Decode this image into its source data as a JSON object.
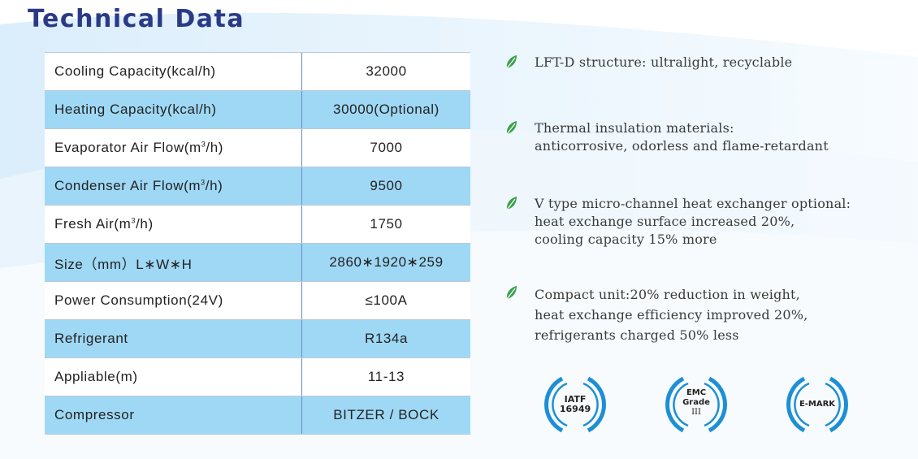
{
  "title": "Technical Data",
  "specs": [
    {
      "label": "Cooling  Capacity(kcal/h)",
      "value": "32000"
    },
    {
      "label": "Heating  Capacity(kcal/h)",
      "value": "30000(Optional)"
    },
    {
      "label_pre": "Evaporator  Air  Flow(m",
      "label_sup": "3",
      "label_post": "/h)",
      "value": "7000"
    },
    {
      "label_pre": "Condenser  Air  Flow(m",
      "label_sup": "3",
      "label_post": "/h)",
      "value": "9500"
    },
    {
      "label_pre": "Fresh  Air(m",
      "label_sup": "3",
      "label_post": "/h)",
      "value": "1750"
    },
    {
      "label": "Size（mm）L∗W∗H",
      "value": "2860∗1920∗259"
    },
    {
      "label": "Power Consumption(24V)",
      "value": "≤100A"
    },
    {
      "label": "Refrigerant",
      "value": "R134a"
    },
    {
      "label": "Appliable(m)",
      "value": "11-13"
    },
    {
      "label": "Compressor",
      "value": "BITZER / BOCK"
    }
  ],
  "features": [
    {
      "lines": [
        "LFT-D structure: ultralight, recyclable"
      ]
    },
    {
      "lines": [
        "Thermal insulation materials:",
        "anticorrosive, odorless and flame-retardant"
      ]
    },
    {
      "lines": [
        "V type micro-channel heat exchanger optional:",
        "heat exchange surface increased 20%,",
        "cooling capacity 15% more"
      ]
    },
    {
      "lines": [
        "Compact unit:20% reduction in weight,",
        "heat exchange efficiency improved 20%,",
        "refrigerants charged 50% less"
      ]
    }
  ],
  "badges": [
    {
      "line1": "IATF",
      "line2": "16949"
    },
    {
      "line1": "EMC",
      "line2": "Grade",
      "line3": "III"
    },
    {
      "line1": "E-MARK"
    }
  ],
  "colors": {
    "title": "#2b3a86",
    "row_alt": "#9fd8f5",
    "leaf": "#3aa14b",
    "ring": "#1d8fd4"
  }
}
